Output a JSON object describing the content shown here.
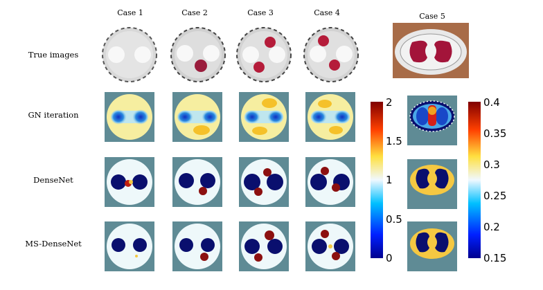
{
  "cases": [
    "Case 1",
    "Case 2",
    "Case 3",
    "Case 4",
    "Case 5"
  ],
  "rows": [
    "True images",
    "GN iteration",
    "DenseNet",
    "MS-DenseNet"
  ],
  "colorbar_left": {
    "ticks": [
      "2",
      "1.5",
      "1",
      "0.5",
      "0"
    ]
  },
  "colorbar_right": {
    "ticks": [
      "0.4",
      "0.35",
      "0.3",
      "0.25",
      "0.2",
      "0.15"
    ]
  },
  "colors": {
    "tile_bg": "#5f8b95",
    "dark_blue": "#0a0f6e",
    "yellow": "#f5c842",
    "red": "#8c1010"
  }
}
